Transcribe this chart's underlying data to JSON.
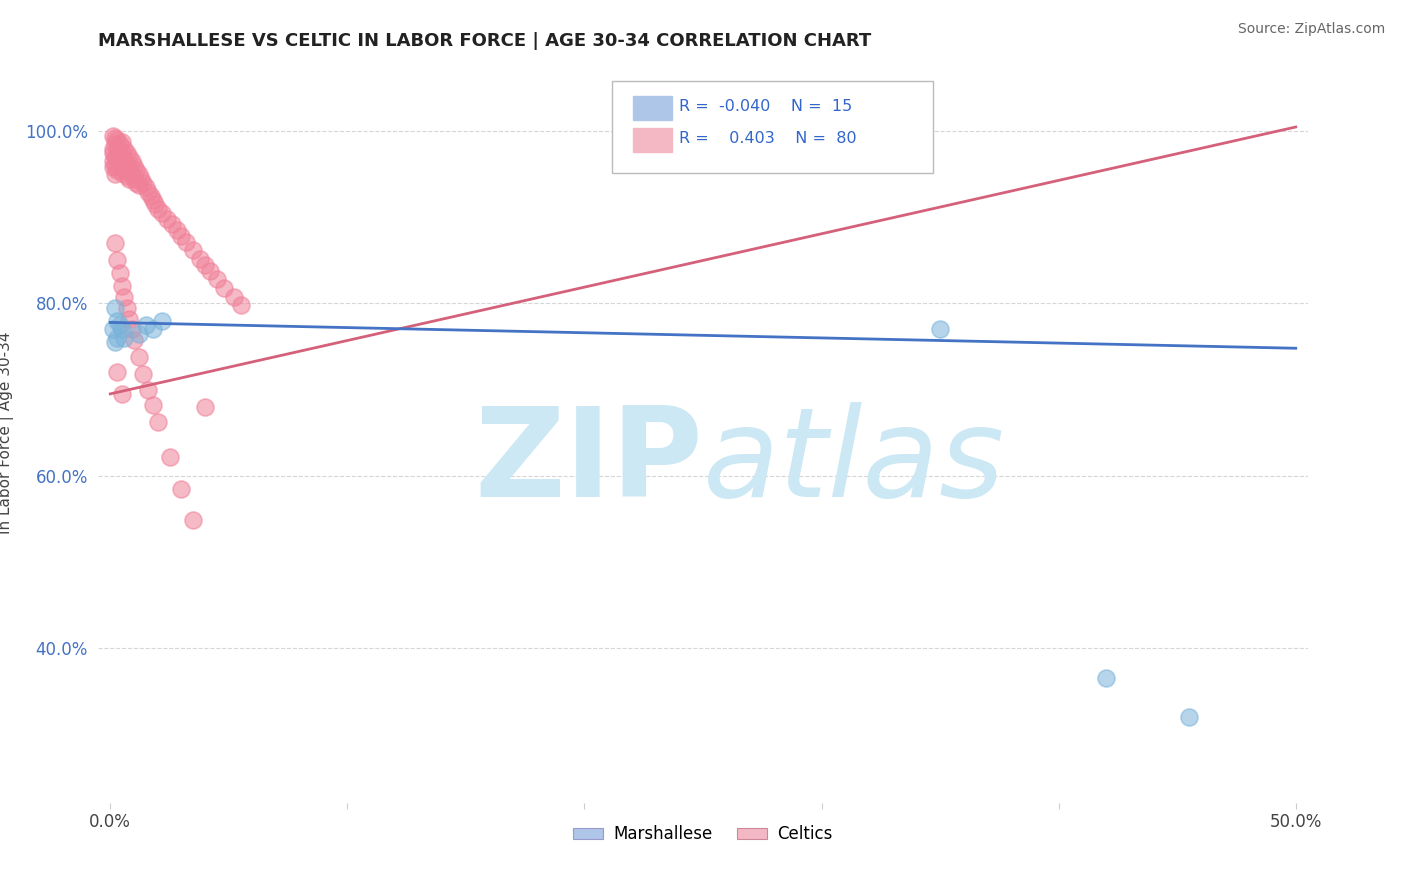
{
  "title": "MARSHALLESE VS CELTIC IN LABOR FORCE | AGE 30-34 CORRELATION CHART",
  "source": "Source: ZipAtlas.com",
  "ylabel": "In Labor Force | Age 30-34",
  "xlim": [
    -0.005,
    0.505
  ],
  "ylim": [
    0.22,
    1.08
  ],
  "xticks": [
    0.0,
    0.1,
    0.2,
    0.3,
    0.4,
    0.5
  ],
  "xtick_labels": [
    "0.0%",
    "",
    "",
    "",
    "",
    "50.0%"
  ],
  "ytick_vals": [
    0.4,
    0.6,
    0.8,
    1.0
  ],
  "ytick_labels": [
    "40.0%",
    "60.0%",
    "80.0%",
    "100.0%"
  ],
  "marshallese_color": "#7ab3d9",
  "celtics_color": "#f08098",
  "trend_marshallese_color": "#4472c4",
  "trend_celtics_color": "#d4607a",
  "background_color": "#ffffff",
  "watermark_color": "#cce8f4",
  "legend_blue_color": "#aec6e8",
  "legend_pink_color": "#f4b8c4",
  "marshallese_x": [
    0.001,
    0.002,
    0.002,
    0.003,
    0.003,
    0.004,
    0.005,
    0.006,
    0.012,
    0.015,
    0.018,
    0.022,
    0.35,
    0.42,
    0.455
  ],
  "marshallese_y": [
    0.77,
    0.795,
    0.755,
    0.78,
    0.76,
    0.775,
    0.77,
    0.76,
    0.765,
    0.775,
    0.77,
    0.78,
    0.77,
    0.365,
    0.32
  ],
  "celtics_x": [
    0.001,
    0.001,
    0.001,
    0.001,
    0.001,
    0.002,
    0.002,
    0.002,
    0.002,
    0.002,
    0.003,
    0.003,
    0.003,
    0.003,
    0.004,
    0.004,
    0.004,
    0.005,
    0.005,
    0.005,
    0.005,
    0.006,
    0.006,
    0.006,
    0.007,
    0.007,
    0.007,
    0.008,
    0.008,
    0.008,
    0.009,
    0.009,
    0.01,
    0.01,
    0.011,
    0.011,
    0.012,
    0.012,
    0.013,
    0.014,
    0.015,
    0.016,
    0.017,
    0.018,
    0.019,
    0.02,
    0.022,
    0.024,
    0.026,
    0.028,
    0.03,
    0.032,
    0.035,
    0.038,
    0.04,
    0.042,
    0.045,
    0.048,
    0.052,
    0.055,
    0.002,
    0.003,
    0.004,
    0.005,
    0.006,
    0.007,
    0.008,
    0.009,
    0.01,
    0.012,
    0.014,
    0.016,
    0.018,
    0.02,
    0.025,
    0.03,
    0.035,
    0.003,
    0.005,
    0.04
  ],
  "celtics_y": [
    0.995,
    0.98,
    0.975,
    0.965,
    0.958,
    0.992,
    0.985,
    0.97,
    0.96,
    0.95,
    0.99,
    0.98,
    0.968,
    0.955,
    0.985,
    0.972,
    0.96,
    0.988,
    0.975,
    0.965,
    0.952,
    0.98,
    0.968,
    0.955,
    0.975,
    0.96,
    0.948,
    0.97,
    0.958,
    0.945,
    0.965,
    0.95,
    0.96,
    0.945,
    0.955,
    0.94,
    0.95,
    0.938,
    0.945,
    0.94,
    0.935,
    0.93,
    0.925,
    0.92,
    0.915,
    0.91,
    0.905,
    0.898,
    0.892,
    0.885,
    0.878,
    0.872,
    0.862,
    0.852,
    0.845,
    0.838,
    0.828,
    0.818,
    0.808,
    0.798,
    0.87,
    0.85,
    0.835,
    0.82,
    0.808,
    0.795,
    0.782,
    0.77,
    0.758,
    0.738,
    0.718,
    0.7,
    0.682,
    0.662,
    0.622,
    0.585,
    0.548,
    0.72,
    0.695,
    0.68
  ],
  "trend_celtic_x0": 0.0,
  "trend_celtic_x1": 0.5,
  "trend_celtic_y0": 0.695,
  "trend_celtic_y1": 1.005,
  "trend_marsh_x0": 0.0,
  "trend_marsh_x1": 0.5,
  "trend_marsh_y0": 0.778,
  "trend_marsh_y1": 0.748
}
